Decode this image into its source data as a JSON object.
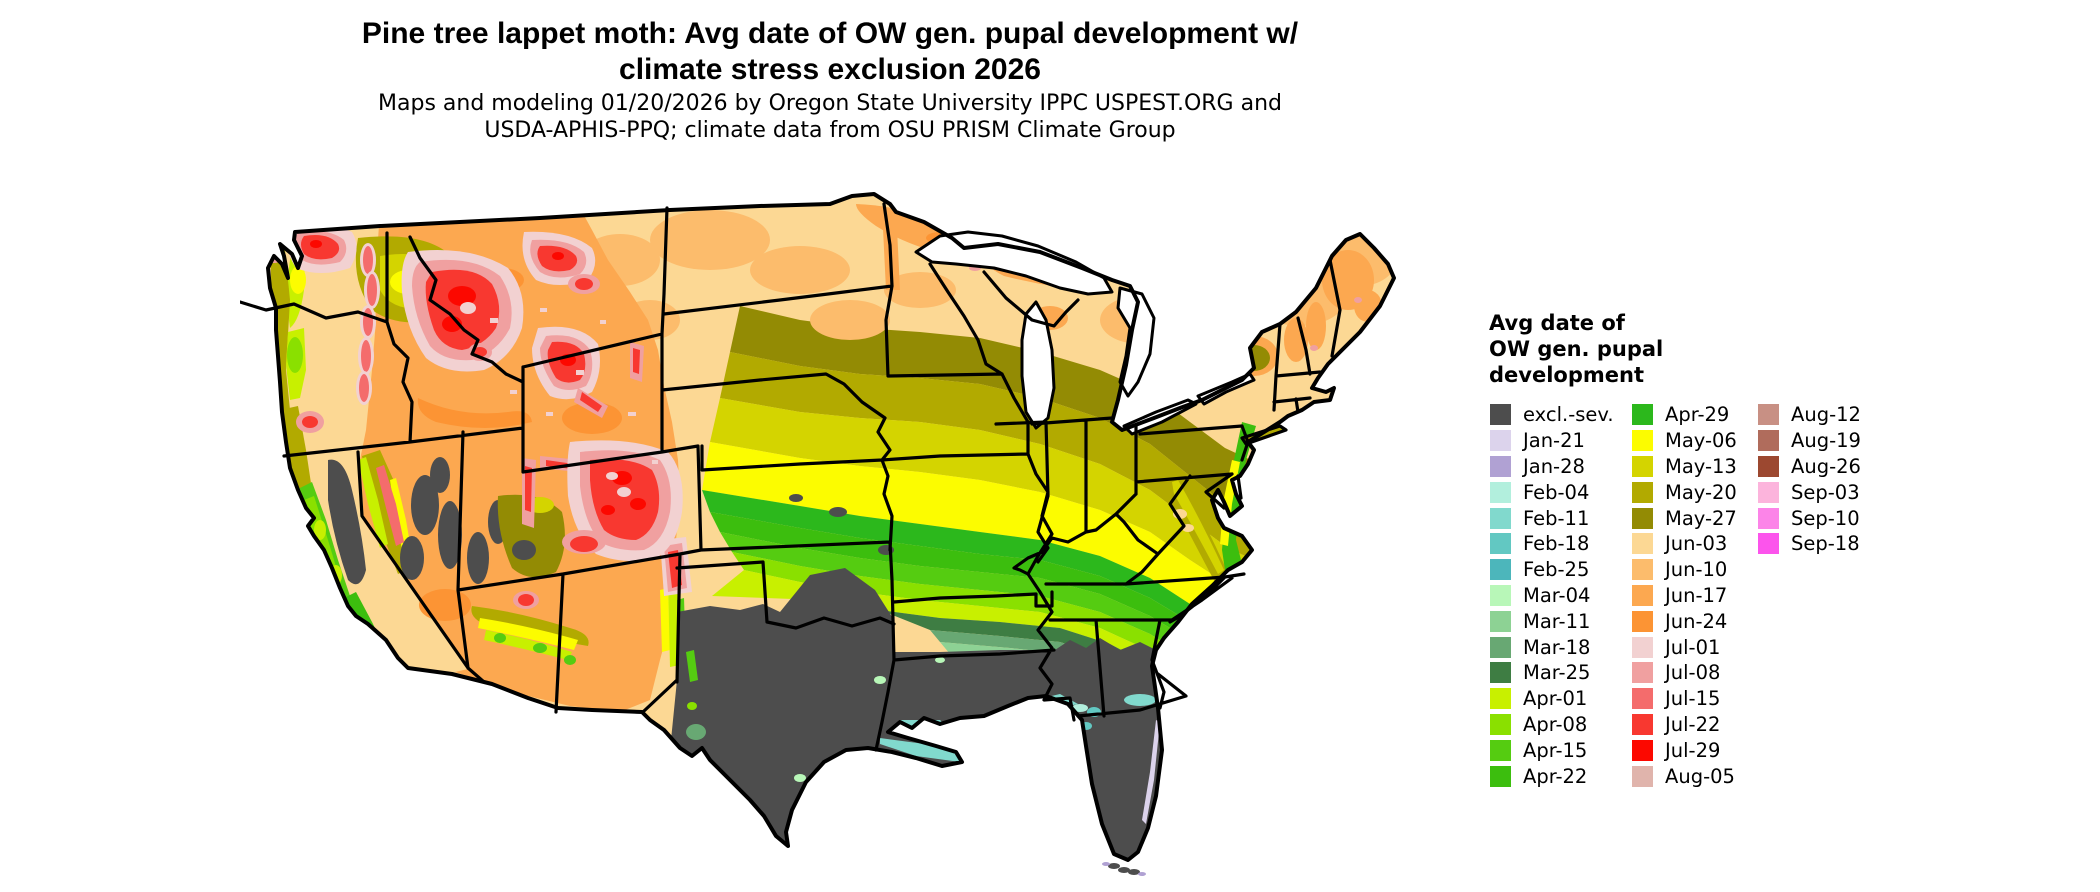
{
  "title": {
    "line1": "Pine tree lappet moth: Avg date of OW gen. pupal development w/",
    "line2": "climate stress exclusion 2026"
  },
  "subtitle": {
    "line1": "Maps and modeling 01/20/2026 by Oregon State University IPPC USPEST.ORG and",
    "line2": "USDA-APHIS-PPQ; climate data from OSU PRISM Climate Group"
  },
  "legend": {
    "title_lines": [
      "Avg date of",
      "OW gen. pupal",
      "development"
    ],
    "columns": [
      [
        {
          "label": "excl.-sev.",
          "color": "#4d4d4d"
        },
        {
          "label": "Jan-21",
          "color": "#dcd3ec"
        },
        {
          "label": "Jan-28",
          "color": "#b0a1d3"
        },
        {
          "label": "Feb-04",
          "color": "#b2efdd"
        },
        {
          "label": "Feb-11",
          "color": "#81d9cd"
        },
        {
          "label": "Feb-18",
          "color": "#62c8c2"
        },
        {
          "label": "Feb-25",
          "color": "#4cb6bb"
        },
        {
          "label": "Mar-04",
          "color": "#b8f7b8"
        },
        {
          "label": "Mar-11",
          "color": "#8dd294"
        },
        {
          "label": "Mar-18",
          "color": "#68a873"
        },
        {
          "label": "Mar-25",
          "color": "#3e7d43"
        },
        {
          "label": "Apr-01",
          "color": "#c8f000"
        },
        {
          "label": "Apr-08",
          "color": "#8ae000"
        },
        {
          "label": "Apr-15",
          "color": "#55cc11"
        },
        {
          "label": "Apr-22",
          "color": "#3cbe0e"
        }
      ],
      [
        {
          "label": "Apr-29",
          "color": "#2cb81c"
        },
        {
          "label": "May-06",
          "color": "#fcfc00"
        },
        {
          "label": "May-13",
          "color": "#d4d400"
        },
        {
          "label": "May-20",
          "color": "#b2aa00"
        },
        {
          "label": "May-27",
          "color": "#938b04"
        },
        {
          "label": "Jun-03",
          "color": "#fcd894"
        },
        {
          "label": "Jun-10",
          "color": "#fcbc6c"
        },
        {
          "label": "Jun-17",
          "color": "#fca850"
        },
        {
          "label": "Jun-24",
          "color": "#fc9434"
        },
        {
          "label": "Jul-01",
          "color": "#f2d1d1"
        },
        {
          "label": "Jul-08",
          "color": "#f0a0a0"
        },
        {
          "label": "Jul-15",
          "color": "#f46c6c"
        },
        {
          "label": "Jul-22",
          "color": "#f83830"
        },
        {
          "label": "Jul-29",
          "color": "#fc0800"
        },
        {
          "label": "Aug-05",
          "color": "#e0b4ac"
        }
      ],
      [
        {
          "label": "Aug-12",
          "color": "#c89084"
        },
        {
          "label": "Aug-19",
          "color": "#b06c5c"
        },
        {
          "label": "Aug-26",
          "color": "#9c4830"
        },
        {
          "label": "Sep-03",
          "color": "#fcb4dc"
        },
        {
          "label": "Sep-10",
          "color": "#fc84e8"
        },
        {
          "label": "Sep-18",
          "color": "#fc54ec"
        }
      ]
    ]
  },
  "map": {
    "ink": "#000000",
    "water": "#ffffff"
  }
}
